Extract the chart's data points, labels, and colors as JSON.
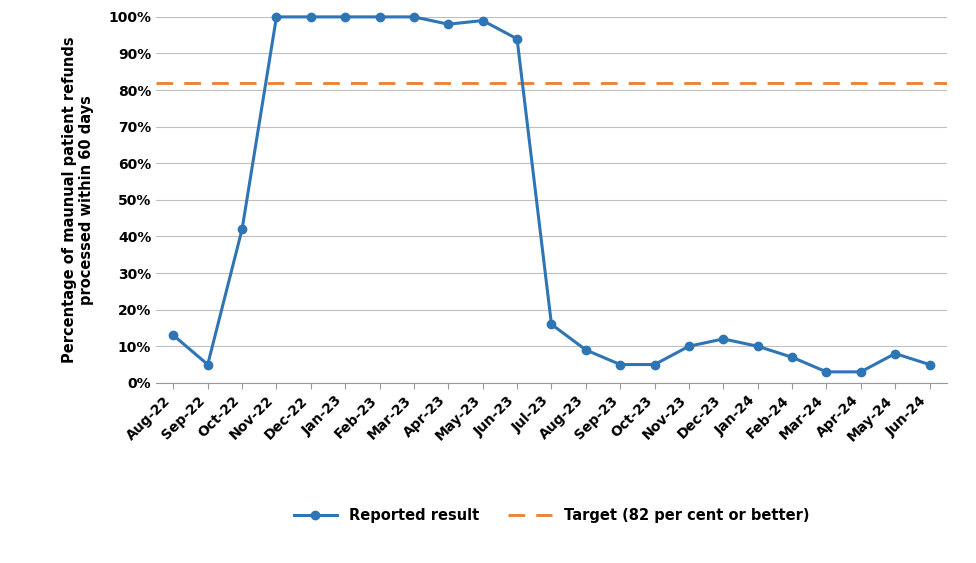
{
  "categories": [
    "Aug-22",
    "Sep-22",
    "Oct-22",
    "Nov-22",
    "Dec-22",
    "Jan-23",
    "Feb-23",
    "Mar-23",
    "Apr-23",
    "May-23",
    "Jun-23",
    "Jul-23",
    "Aug-23",
    "Sep-23",
    "Oct-23",
    "Nov-23",
    "Dec-23",
    "Jan-24",
    "Feb-24",
    "Mar-24",
    "Apr-24",
    "May-24",
    "Jun-24"
  ],
  "values": [
    13,
    5,
    42,
    100,
    100,
    100,
    100,
    100,
    98,
    99,
    94,
    16,
    9,
    5,
    5,
    10,
    12,
    10,
    7,
    3,
    3,
    8,
    5
  ],
  "target": 82,
  "line_color": "#2e75b6",
  "target_color": "#ED7D31",
  "ylabel_line1": "Percentage of maunual patient refunds",
  "ylabel_line2": "processed within 60 days",
  "ylim": [
    0,
    100
  ],
  "yticks": [
    0,
    10,
    20,
    30,
    40,
    50,
    60,
    70,
    80,
    90,
    100
  ],
  "ytick_labels": [
    "0%",
    "10%",
    "20%",
    "30%",
    "40%",
    "50%",
    "60%",
    "70%",
    "80%",
    "90%",
    "100%"
  ],
  "legend_result": "Reported result",
  "legend_target": "Target (82 per cent or better)",
  "background_color": "#ffffff",
  "grid_color": "#bfbfbf",
  "label_fontsize": 10.5,
  "tick_fontsize": 10,
  "legend_fontsize": 10.5
}
